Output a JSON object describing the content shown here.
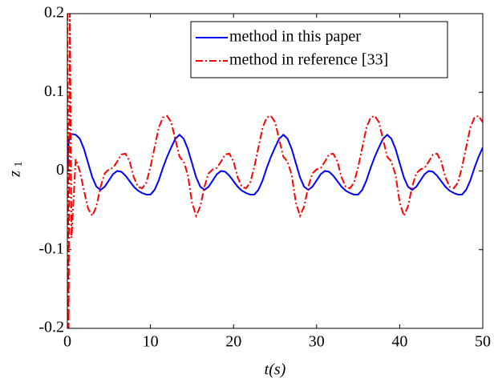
{
  "chart_data": {
    "type": "line",
    "xlabel": "t(s)",
    "ylabel": "z",
    "ylabel_subscript": "1",
    "x": [
      0,
      0.15,
      0.3,
      0.5,
      1,
      1.5,
      2,
      2.5,
      3,
      3.5,
      4,
      4.5,
      5,
      5.5,
      6,
      6.5,
      7,
      7.5,
      8,
      8.5,
      9,
      9.5,
      10,
      10.5,
      11,
      11.5,
      12,
      12.5,
      13,
      13.5,
      14,
      14.5,
      15,
      15.5,
      16,
      16.5,
      17,
      17.5,
      18,
      18.5,
      19,
      19.5,
      20,
      20.5,
      21,
      21.5,
      22,
      22.5,
      23,
      23.5,
      24,
      24.5,
      25,
      25.5,
      26,
      26.5,
      27,
      27.5,
      28,
      28.5,
      29,
      29.5,
      30,
      30.5,
      31,
      31.5,
      32,
      32.5,
      33,
      33.5,
      34,
      34.5,
      35,
      35.5,
      36,
      36.5,
      37,
      37.5,
      38,
      38.5,
      39,
      39.5,
      40,
      40.5,
      41,
      41.5,
      42,
      42.5,
      43,
      43.5,
      44,
      44.5,
      45,
      45.5,
      46,
      46.5,
      47,
      47.5,
      48,
      48.5,
      49,
      49.5,
      50
    ],
    "series": [
      {
        "name": "method in this paper",
        "color": "#0000ff",
        "linestyle": "solid",
        "values": [
          0.0,
          0.035,
          0.045,
          0.047,
          0.046,
          0.041,
          0.028,
          0.01,
          -0.008,
          -0.02,
          -0.024,
          -0.02,
          -0.012,
          -0.004,
          0.0,
          -0.001,
          -0.006,
          -0.013,
          -0.02,
          -0.025,
          -0.028,
          -0.03,
          -0.03,
          -0.024,
          -0.012,
          0.004,
          0.018,
          0.03,
          0.041,
          0.046,
          0.041,
          0.028,
          0.01,
          -0.008,
          -0.02,
          -0.024,
          -0.02,
          -0.012,
          -0.004,
          0.0,
          -0.001,
          -0.006,
          -0.013,
          -0.02,
          -0.025,
          -0.028,
          -0.03,
          -0.03,
          -0.024,
          -0.012,
          0.004,
          0.018,
          0.03,
          0.041,
          0.046,
          0.041,
          0.028,
          0.01,
          -0.008,
          -0.02,
          -0.024,
          -0.02,
          -0.012,
          -0.004,
          0.0,
          -0.001,
          -0.006,
          -0.013,
          -0.02,
          -0.025,
          -0.028,
          -0.03,
          -0.03,
          -0.024,
          -0.012,
          0.004,
          0.018,
          0.03,
          0.041,
          0.046,
          0.041,
          0.028,
          0.01,
          -0.008,
          -0.02,
          -0.024,
          -0.02,
          -0.012,
          -0.004,
          0.0,
          -0.001,
          -0.006,
          -0.013,
          -0.02,
          -0.025,
          -0.028,
          -0.03,
          -0.03,
          -0.024,
          -0.012,
          0.004,
          0.018,
          0.03
        ]
      },
      {
        "name": "method in reference [33]",
        "color": "#ff0000",
        "linestyle": "dashdot",
        "values": [
          0.2,
          -0.2,
          0.2,
          -0.085,
          0.015,
          0.0,
          -0.025,
          -0.048,
          -0.057,
          -0.045,
          -0.02,
          -0.003,
          0.002,
          0.004,
          0.012,
          0.021,
          0.022,
          0.012,
          -0.008,
          -0.02,
          -0.022,
          -0.015,
          0.005,
          0.03,
          0.055,
          0.068,
          0.07,
          0.062,
          0.04,
          0.018,
          0.012,
          -0.005,
          -0.04,
          -0.057,
          -0.045,
          -0.02,
          -0.003,
          0.002,
          0.004,
          0.012,
          0.021,
          0.022,
          0.012,
          -0.008,
          -0.02,
          -0.022,
          -0.015,
          0.005,
          0.03,
          0.055,
          0.068,
          0.07,
          0.062,
          0.04,
          0.018,
          0.012,
          -0.005,
          -0.04,
          -0.057,
          -0.045,
          -0.02,
          -0.003,
          0.002,
          0.004,
          0.012,
          0.021,
          0.022,
          0.012,
          -0.008,
          -0.02,
          -0.022,
          -0.015,
          0.005,
          0.03,
          0.055,
          0.068,
          0.07,
          0.062,
          0.04,
          0.018,
          0.012,
          -0.005,
          -0.04,
          -0.057,
          -0.045,
          -0.02,
          -0.003,
          0.002,
          0.004,
          0.012,
          0.021,
          0.022,
          0.012,
          -0.008,
          -0.02,
          -0.022,
          -0.015,
          0.005,
          0.03,
          0.055,
          0.068,
          0.07,
          0.062
        ]
      }
    ],
    "xlim": [
      0,
      50
    ],
    "xticks": [
      0,
      10,
      20,
      30,
      40,
      50
    ],
    "ylim": [
      -0.2,
      0.2
    ],
    "yticks": [
      -0.2,
      -0.1,
      0,
      0.1,
      0.2
    ],
    "legend": "upper right"
  }
}
